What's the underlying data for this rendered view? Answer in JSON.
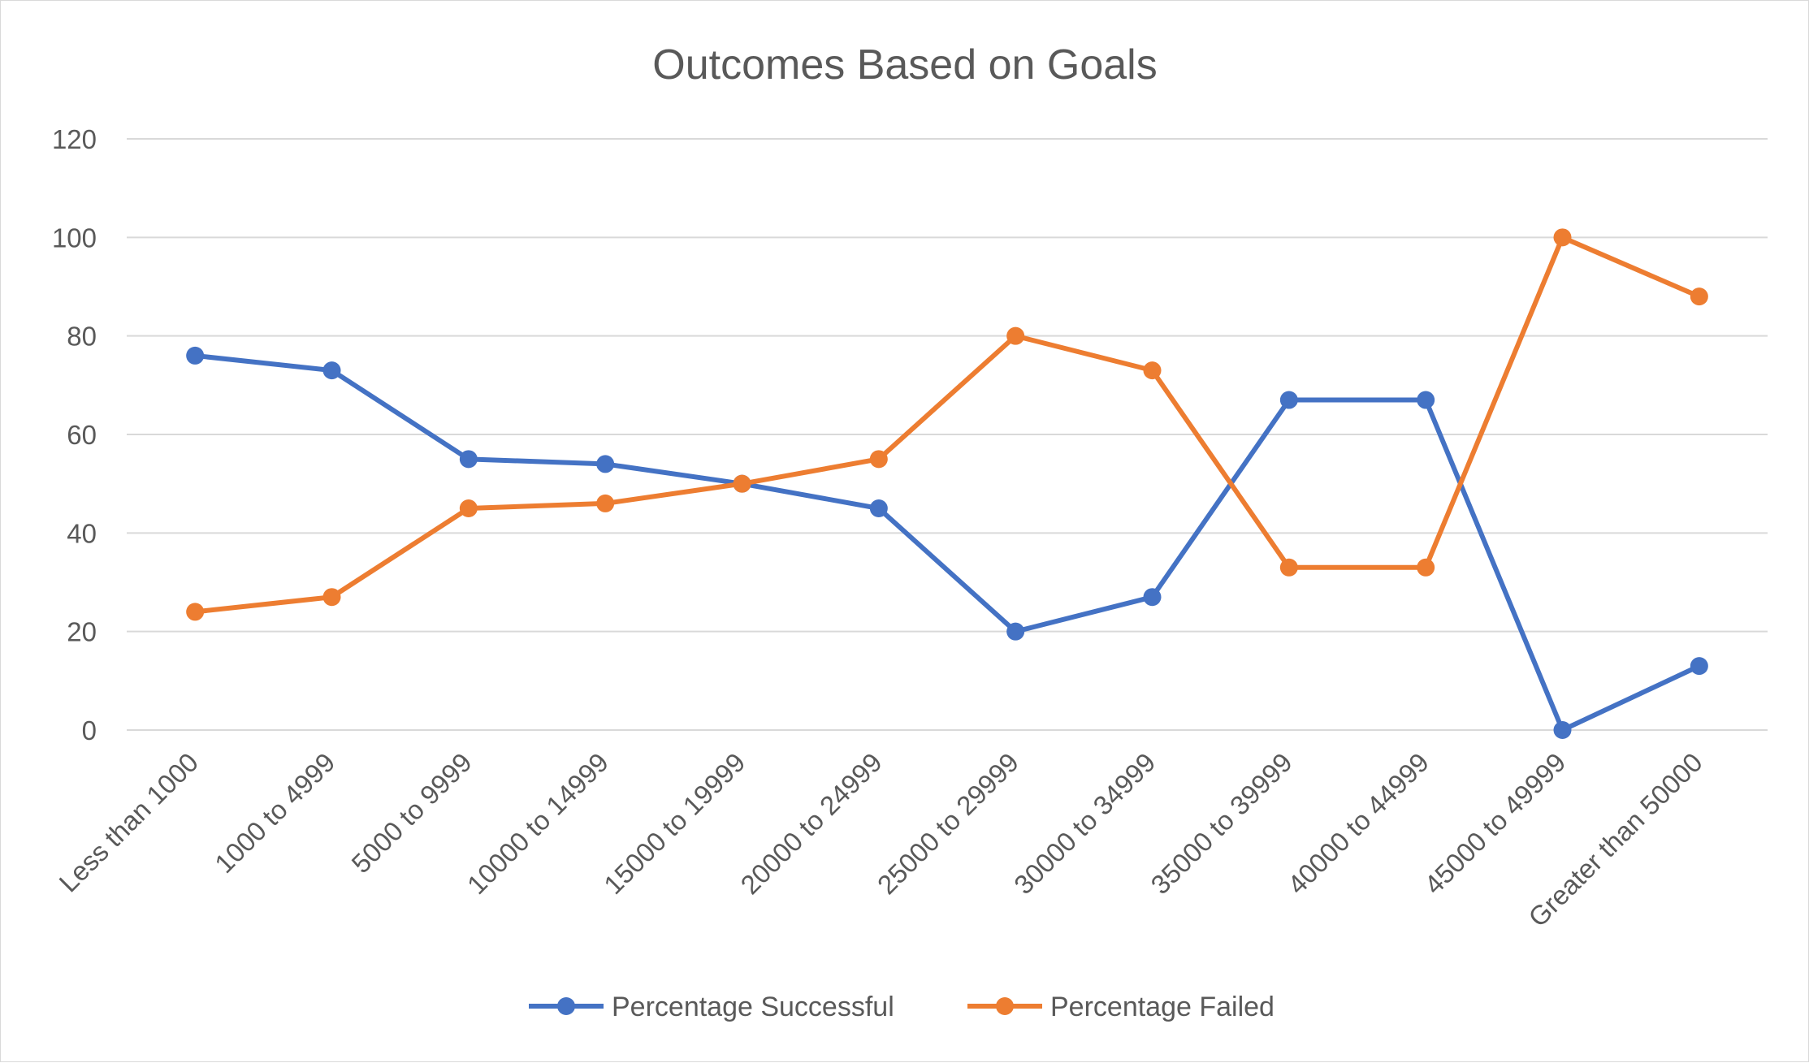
{
  "chart_data": {
    "type": "line",
    "title": "Outcomes Based on Goals",
    "xlabel": "",
    "ylabel": "",
    "categories": [
      "Less than 1000",
      "1000 to 4999",
      "5000 to 9999",
      "10000 to 14999",
      "15000 to 19999",
      "20000 to 24999",
      "25000 to 29999",
      "30000 to 34999",
      "35000 to 39999",
      "40000 to 44999",
      "45000 to 49999",
      "Greater than 50000"
    ],
    "series": [
      {
        "name": "Percentage Successful",
        "color": "#4472c4",
        "values": [
          76,
          73,
          55,
          54,
          50,
          45,
          20,
          27,
          67,
          67,
          0,
          13
        ]
      },
      {
        "name": "Percentage Failed",
        "color": "#ed7d31",
        "values": [
          24,
          27,
          45,
          46,
          50,
          55,
          80,
          73,
          33,
          33,
          100,
          88
        ]
      }
    ],
    "ylim": [
      0,
      120
    ],
    "yticks": [
      0,
      20,
      40,
      60,
      80,
      100,
      120
    ],
    "grid": true,
    "legend": "bottom"
  }
}
